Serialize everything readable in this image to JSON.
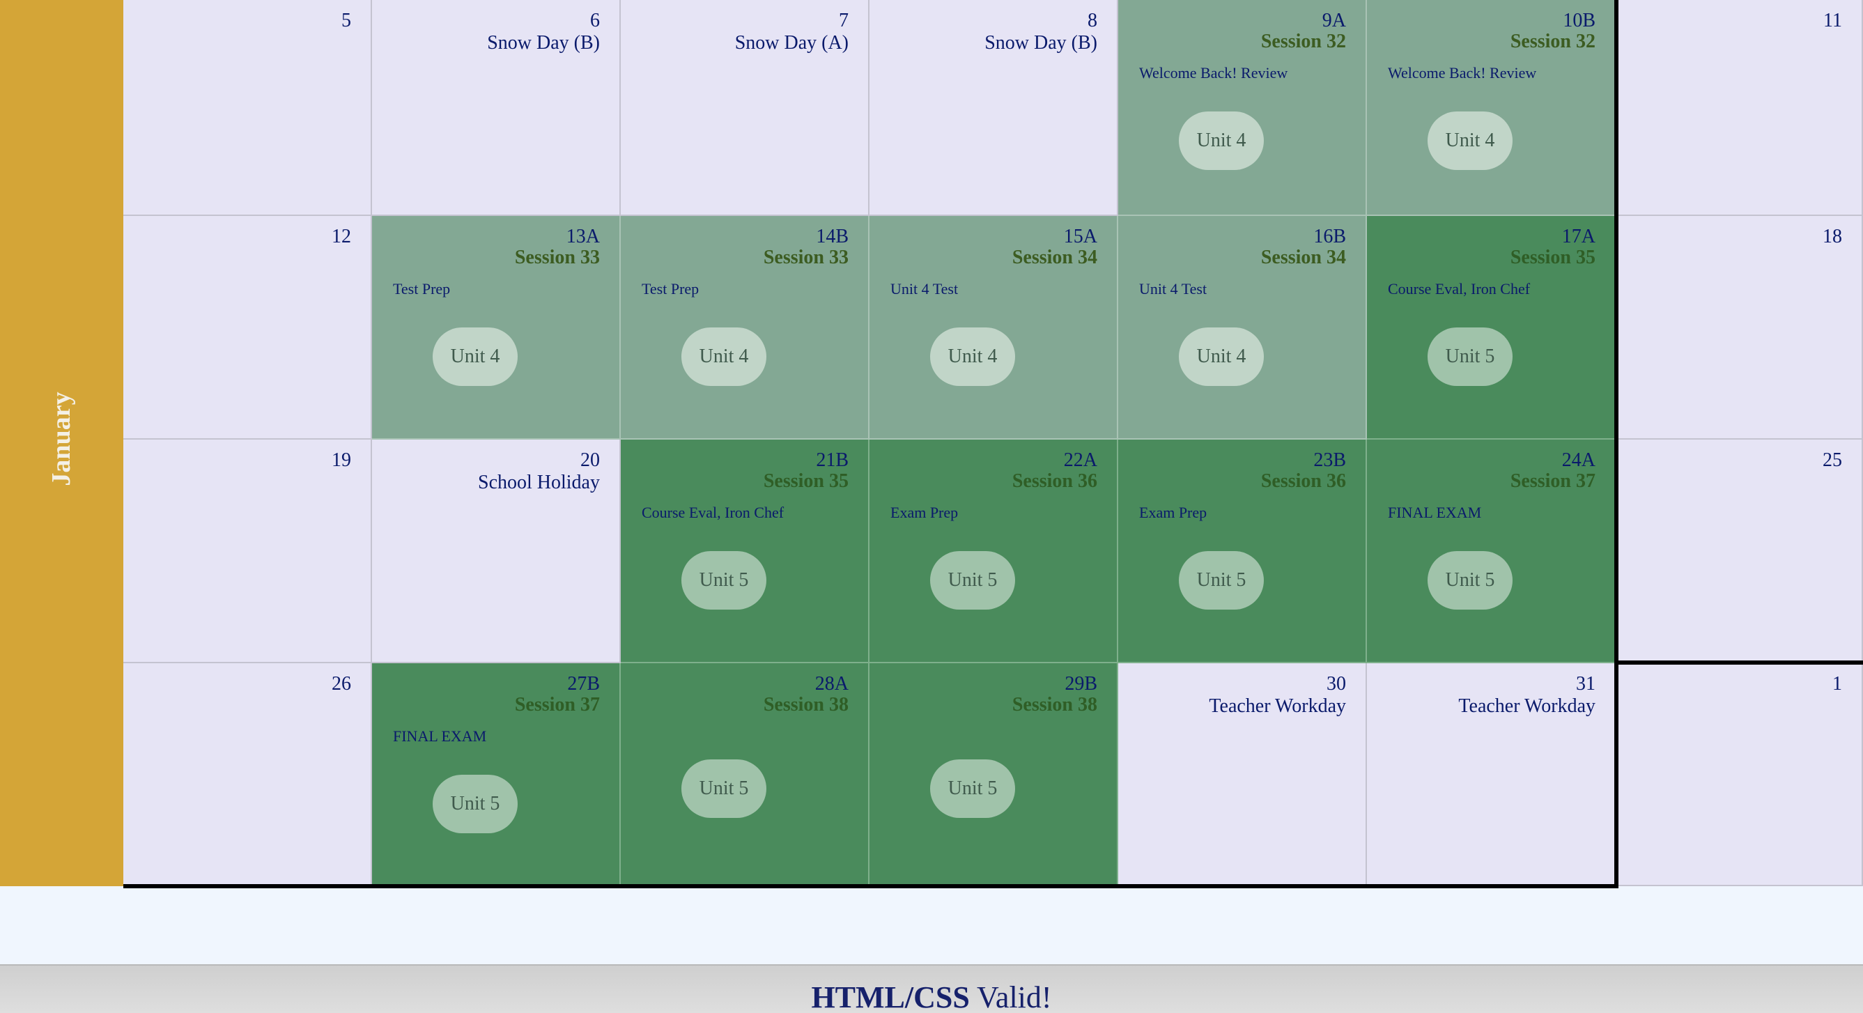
{
  "month": "January",
  "weeks": [
    [
      {
        "day": "5",
        "kind": "empty"
      },
      {
        "day": "6",
        "kind": "empty",
        "note": "Snow Day (B)"
      },
      {
        "day": "7",
        "kind": "empty",
        "note": "Snow Day (A)"
      },
      {
        "day": "8",
        "kind": "empty",
        "note": "Snow Day (B)"
      },
      {
        "day": "9A",
        "kind": "u4",
        "session": "Session 32",
        "topic": "Welcome Back! Review",
        "unit": "Unit 4"
      },
      {
        "day": "10B",
        "kind": "u4",
        "session": "Session 32",
        "topic": "Welcome Back! Review",
        "unit": "Unit 4"
      },
      {
        "day": "11",
        "kind": "empty"
      }
    ],
    [
      {
        "day": "12",
        "kind": "empty"
      },
      {
        "day": "13A",
        "kind": "u4",
        "session": "Session 33",
        "topic": "Test Prep",
        "unit": "Unit 4"
      },
      {
        "day": "14B",
        "kind": "u4",
        "session": "Session 33",
        "topic": "Test Prep",
        "unit": "Unit 4"
      },
      {
        "day": "15A",
        "kind": "u4",
        "session": "Session 34",
        "topic": "Unit 4 Test",
        "unit": "Unit 4"
      },
      {
        "day": "16B",
        "kind": "u4",
        "session": "Session 34",
        "topic": "Unit 4 Test",
        "unit": "Unit 4"
      },
      {
        "day": "17A",
        "kind": "u5",
        "session": "Session 35",
        "topic": "Course Eval, Iron Chef",
        "unit": "Unit 5"
      },
      {
        "day": "18",
        "kind": "empty"
      }
    ],
    [
      {
        "day": "19",
        "kind": "empty"
      },
      {
        "day": "20",
        "kind": "empty",
        "note": "School Holiday"
      },
      {
        "day": "21B",
        "kind": "u5",
        "session": "Session 35",
        "topic": "Course Eval, Iron Chef",
        "unit": "Unit 5"
      },
      {
        "day": "22A",
        "kind": "u5",
        "session": "Session 36",
        "topic": "Exam Prep",
        "unit": "Unit 5"
      },
      {
        "day": "23B",
        "kind": "u5",
        "session": "Session 36",
        "topic": "Exam Prep",
        "unit": "Unit 5"
      },
      {
        "day": "24A",
        "kind": "u5",
        "session": "Session 37",
        "topic": "FINAL EXAM",
        "unit": "Unit 5"
      },
      {
        "day": "25",
        "kind": "empty"
      }
    ],
    [
      {
        "day": "26",
        "kind": "empty"
      },
      {
        "day": "27B",
        "kind": "u5",
        "session": "Session 37",
        "topic": "FINAL EXAM",
        "unit": "Unit 5"
      },
      {
        "day": "28A",
        "kind": "u5",
        "session": "Session 38",
        "unit": "Unit 5"
      },
      {
        "day": "29B",
        "kind": "u5",
        "session": "Session 38",
        "unit": "Unit 5"
      },
      {
        "day": "30",
        "kind": "empty",
        "note": "Teacher Workday"
      },
      {
        "day": "31",
        "kind": "empty",
        "note": "Teacher Workday"
      },
      {
        "day": "1",
        "kind": "empty"
      }
    ]
  ],
  "footer": {
    "strong": "HTML/CSS",
    "rest": " Valid!"
  },
  "colors": {
    "month_band": "#d4a537",
    "empty": "#e6e4f5",
    "unit4": "#83a894",
    "unit5": "#4a8b5c"
  }
}
